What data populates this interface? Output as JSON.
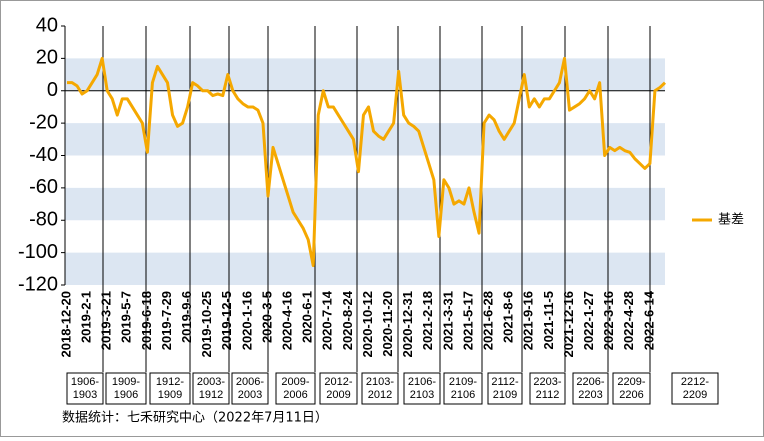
{
  "chart_data": {
    "type": "line",
    "categories": [
      "2018-12-20",
      null,
      null,
      null,
      "2019-2-1",
      null,
      null,
      null,
      "2019-3-21",
      null,
      null,
      null,
      "2019-5-7",
      null,
      null,
      null,
      "2019-6-18",
      null,
      null,
      null,
      "2019-7-29",
      null,
      null,
      null,
      "2019-9-6",
      null,
      null,
      null,
      "2019-10-25",
      null,
      null,
      null,
      "2019-12-5",
      null,
      null,
      null,
      "2020-1-16",
      null,
      null,
      null,
      "2020-3-5",
      null,
      null,
      null,
      "2020-4-16",
      null,
      null,
      null,
      "2020-6-1",
      null,
      null,
      null,
      "2020-7-14",
      null,
      null,
      null,
      "2020-8-24",
      null,
      null,
      null,
      "2020-10-12",
      null,
      null,
      null,
      "2020-11-20",
      null,
      null,
      null,
      "2020-12-31",
      null,
      null,
      null,
      "2021-2-18",
      null,
      null,
      null,
      "2021-3-31",
      null,
      null,
      null,
      "2021-5-17",
      null,
      null,
      null,
      "2021-6-28",
      null,
      null,
      null,
      "2021-8-6",
      null,
      null,
      null,
      "2021-9-16",
      null,
      null,
      null,
      "2021-11-5",
      null,
      null,
      null,
      "2021-12-16",
      null,
      null,
      null,
      "2022-1-27",
      null,
      null,
      null,
      "2022-3-16",
      null,
      null,
      null,
      "2022-4-28",
      null,
      null,
      null,
      "2022-6-14",
      null,
      null,
      null
    ],
    "series": [
      {
        "name": "基差",
        "color": "#f5a800",
        "values": [
          5,
          5,
          3,
          -2,
          0,
          5,
          10,
          20,
          0,
          -5,
          -15,
          -5,
          -5,
          -10,
          -15,
          -20,
          -38,
          5,
          15,
          10,
          5,
          -15,
          -22,
          -20,
          -10,
          5,
          3,
          0,
          0,
          -3,
          -2,
          -3,
          10,
          0,
          -5,
          -8,
          -10,
          -10,
          -12,
          -20,
          -65,
          -35,
          -45,
          -55,
          -65,
          -75,
          -80,
          -85,
          -92,
          -108,
          -15,
          0,
          -10,
          -10,
          -15,
          -20,
          -25,
          -30,
          -50,
          -15,
          -10,
          -25,
          -28,
          -30,
          -25,
          -20,
          12,
          -15,
          -20,
          -22,
          -25,
          -35,
          -45,
          -55,
          -90,
          -55,
          -60,
          -70,
          -68,
          -70,
          -60,
          -75,
          -88,
          -20,
          -15,
          -18,
          -25,
          -30,
          -25,
          -20,
          -5,
          10,
          -10,
          -5,
          -10,
          -5,
          -5,
          0,
          5,
          20,
          -12,
          -10,
          -8,
          -5,
          0,
          -5,
          5,
          -40,
          -35,
          -37,
          -35,
          -37,
          -38,
          -42,
          -45,
          -48,
          -45,
          0,
          2,
          5
        ]
      }
    ],
    "ylim": [
      -120,
      40
    ],
    "yticks": [
      -120,
      -100,
      -80,
      -60,
      -40,
      -20,
      0,
      20,
      40
    ],
    "contracts": [
      [
        "1906-",
        "1903"
      ],
      [
        "1909-",
        "1906"
      ],
      [
        "1912-",
        "1909"
      ],
      [
        "2003-",
        "1912"
      ],
      [
        "2006-",
        "2003"
      ],
      [
        "2009-",
        "2006"
      ],
      [
        "2012-",
        "2009"
      ],
      [
        "2103-",
        "2012"
      ],
      [
        "2106-",
        "2103"
      ],
      [
        "2109-",
        "2106"
      ],
      [
        "2112-",
        "2109"
      ],
      [
        "2203-",
        "2112"
      ],
      [
        "2206-",
        "2203"
      ],
      [
        "2209-",
        "2206"
      ],
      [
        "2212-",
        "2209"
      ]
    ],
    "source": "数据统计：七禾研究中心（2022年7月11日）"
  }
}
